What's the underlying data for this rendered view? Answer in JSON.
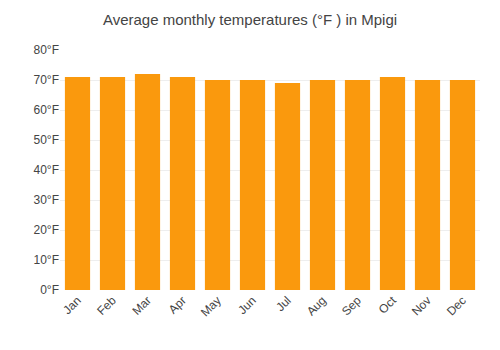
{
  "chart_data": {
    "type": "bar",
    "title": "Average monthly temperatures (°F ) in Mpigi",
    "categories": [
      "Jan",
      "Feb",
      "Mar",
      "Apr",
      "May",
      "Jun",
      "Jul",
      "Aug",
      "Sep",
      "Oct",
      "Nov",
      "Dec"
    ],
    "values": [
      71,
      71,
      72,
      71,
      70,
      70,
      69,
      70,
      70,
      71,
      70,
      70
    ],
    "color": "#fa990d",
    "ylim": [
      0,
      80
    ],
    "yticks": [
      {
        "value": 0,
        "label": "0°F"
      },
      {
        "value": 10,
        "label": "10°F"
      },
      {
        "value": 20,
        "label": "20°F"
      },
      {
        "value": 30,
        "label": "30°F"
      },
      {
        "value": 40,
        "label": "40°F"
      },
      {
        "value": 50,
        "label": "50°F"
      },
      {
        "value": 60,
        "label": "60°F"
      },
      {
        "value": 70,
        "label": "70°F"
      },
      {
        "value": 80,
        "label": "80°F"
      }
    ],
    "grid": true
  }
}
